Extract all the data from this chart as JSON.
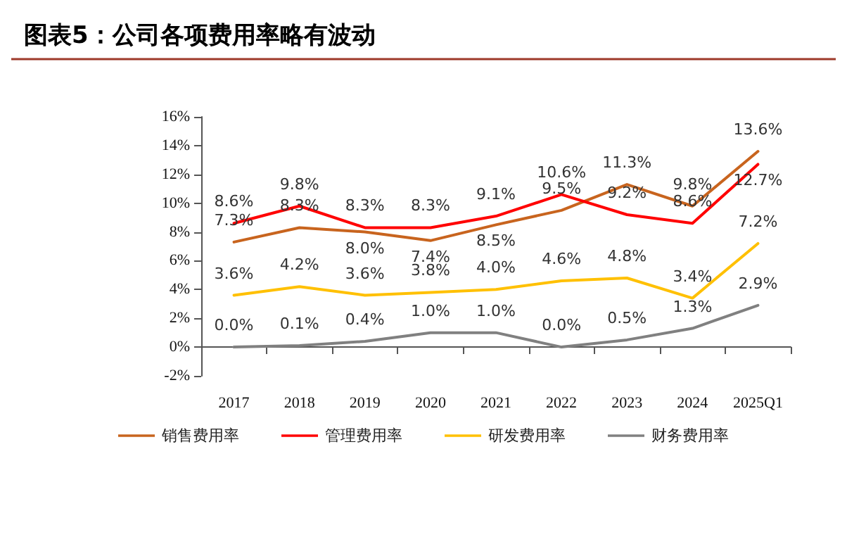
{
  "chart_data": {
    "type": "line",
    "title": "图表5：公司各项费用率略有波动",
    "categories": [
      "2017",
      "2018",
      "2019",
      "2020",
      "2021",
      "2022",
      "2023",
      "2024",
      "2025Q1"
    ],
    "series": [
      {
        "name": "销售费用率",
        "color": "#c8641e",
        "values": [
          7.3,
          8.3,
          8.0,
          7.4,
          8.5,
          9.5,
          11.3,
          9.8,
          13.6
        ],
        "value_labels": [
          "7.3%",
          "8.3%",
          "8.0%",
          "7.4%",
          "8.5%",
          "9.5%",
          "11.3%",
          "9.8%",
          "13.6%"
        ]
      },
      {
        "name": "管理费用率",
        "color": "#ff0000",
        "values": [
          8.6,
          9.8,
          8.3,
          8.3,
          9.1,
          10.6,
          9.2,
          8.6,
          12.7
        ],
        "value_labels": [
          "8.6%",
          "9.8%",
          "8.3%",
          "8.3%",
          "9.1%",
          "10.6%",
          "9.2%",
          "8.6%",
          "12.7%"
        ]
      },
      {
        "name": "研发费用率",
        "color": "#ffc000",
        "values": [
          3.6,
          4.2,
          3.6,
          3.8,
          4.0,
          4.6,
          4.8,
          3.4,
          7.2
        ],
        "value_labels": [
          "3.6%",
          "4.2%",
          "3.6%",
          "3.8%",
          "4.0%",
          "4.6%",
          "4.8%",
          "3.4%",
          "7.2%"
        ]
      },
      {
        "name": "财务费用率",
        "color": "#808080",
        "values": [
          0.0,
          0.1,
          0.4,
          1.0,
          1.0,
          0.0,
          0.5,
          1.3,
          2.9
        ],
        "value_labels": [
          "0.0%",
          "0.1%",
          "0.4%",
          "1.0%",
          "1.0%",
          "0.0%",
          "0.5%",
          "1.3%",
          "2.9%"
        ]
      }
    ],
    "ylim": [
      -2,
      16
    ],
    "yticks": [
      {
        "value": -2,
        "label": "-2%"
      },
      {
        "value": 0,
        "label": "0%"
      },
      {
        "value": 2,
        "label": "2%"
      },
      {
        "value": 4,
        "label": "4%"
      },
      {
        "value": 6,
        "label": "6%"
      },
      {
        "value": 8,
        "label": "8%"
      },
      {
        "value": 10,
        "label": "10%"
      },
      {
        "value": 12,
        "label": "12%"
      },
      {
        "value": 14,
        "label": "14%"
      },
      {
        "value": 16,
        "label": "16%"
      }
    ],
    "legend": "bottom",
    "marker": "none",
    "line_style": "solid"
  }
}
